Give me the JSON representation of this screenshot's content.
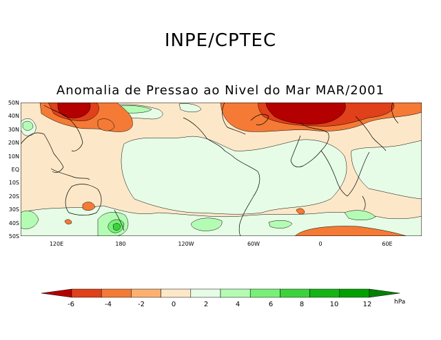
{
  "header": {
    "title": "INPE/CPTEC"
  },
  "map": {
    "title": "Anomalia de Pressao ao Nivel do Mar MAR/2001",
    "lat_labels": [
      "50N",
      "40N",
      "30N",
      "20N",
      "10N",
      "EQ",
      "10S",
      "20S",
      "30S",
      "40S",
      "50S"
    ],
    "lon_labels": [
      "120E",
      "180",
      "120W",
      "60W",
      "0",
      "60E"
    ]
  },
  "colorbar": {
    "labels": [
      "-6",
      "-4",
      "-2",
      "0",
      "2",
      "4",
      "6",
      "8",
      "10",
      "12"
    ],
    "unit": "hPa",
    "colors": [
      "#b40000",
      "#e0401a",
      "#f47a36",
      "#fcb070",
      "#fce8c8",
      "#e6fce6",
      "#b4fcb4",
      "#78f078",
      "#3cd23c",
      "#14b414",
      "#00a000",
      "#008200"
    ]
  }
}
